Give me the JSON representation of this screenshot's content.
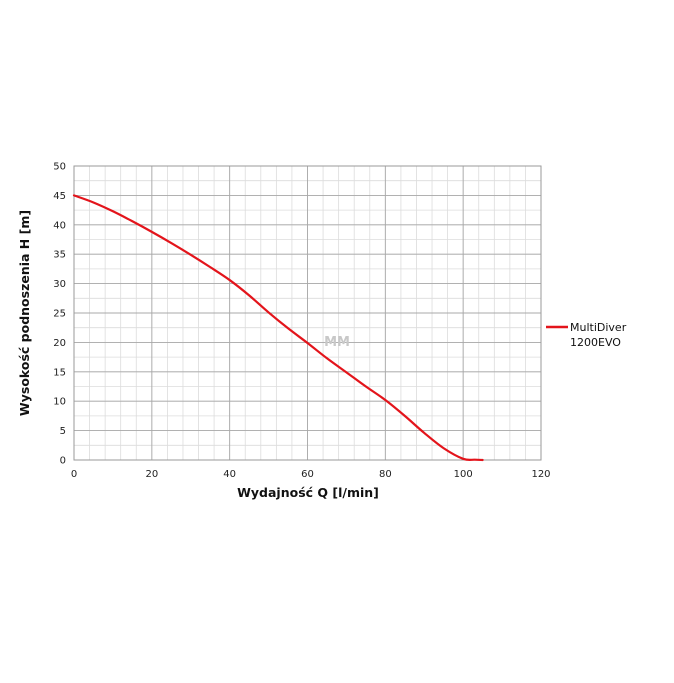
{
  "chart_data": {
    "type": "line",
    "xlabel": "Wydajność Q [l/min]",
    "ylabel": "Wysokość podnoszenia H [m]",
    "xlim": [
      0,
      120
    ],
    "ylim": [
      0,
      50
    ],
    "x_major_ticks": [
      0,
      20,
      40,
      60,
      80,
      100,
      120
    ],
    "y_major_ticks": [
      0,
      5,
      10,
      15,
      20,
      25,
      30,
      35,
      40,
      45,
      50
    ],
    "x_minor_step": 4,
    "y_minor_step": 2.5,
    "grid": true,
    "legend_position": "right",
    "series": [
      {
        "name": "MultiDiver 1200EVO",
        "color": "#e3141b",
        "x": [
          0,
          5,
          10,
          15,
          20,
          25,
          30,
          35,
          40,
          45,
          50,
          55,
          60,
          65,
          70,
          75,
          80,
          85,
          90,
          95,
          100,
          103,
          105
        ],
        "y": [
          45,
          43.8,
          42.3,
          40.6,
          38.8,
          36.9,
          34.9,
          32.8,
          30.6,
          28.0,
          25.1,
          22.4,
          19.9,
          17.3,
          14.9,
          12.5,
          10.2,
          7.5,
          4.6,
          2.0,
          0.2,
          0.05,
          0
        ]
      }
    ],
    "legend_labels": [
      "MultiDiver",
      "1200EVO"
    ],
    "watermark": "MM"
  }
}
